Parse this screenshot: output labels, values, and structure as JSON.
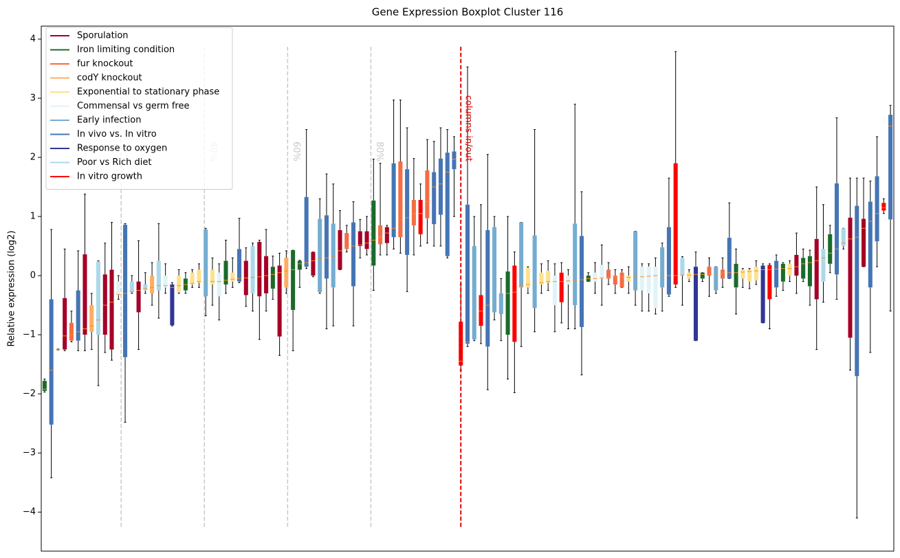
{
  "chart_data": {
    "type": "boxplot",
    "title": "Gene Expression Boxplot Cluster 116",
    "y_label": "Relative expression (log2)",
    "ylim": [
      -4.66,
      4.22
    ],
    "yticks": [
      {
        "value": -4,
        "label": "−4"
      },
      {
        "value": -3,
        "label": "−3"
      },
      {
        "value": -2,
        "label": "−2"
      },
      {
        "value": -1,
        "label": "−1"
      },
      0,
      1,
      2,
      3,
      4
    ],
    "xlim": [
      -0.5,
      126.5
    ],
    "legend": "upper left",
    "series": [
      {
        "name": "Sporulation",
        "color": "#a50026"
      },
      {
        "name": "Iron limiting condition",
        "color": "#1a6b2a"
      },
      {
        "name": "fur knockout",
        "color": "#f46d43"
      },
      {
        "name": "codY knockout",
        "color": "#fdae61"
      },
      {
        "name": "Exponential to stationary phase",
        "color": "#fee090"
      },
      {
        "name": "Commensal vs germ free",
        "color": "#e0f3f8"
      },
      {
        "name": "Early infection",
        "color": "#74add1"
      },
      {
        "name": "In vivo vs. In vitro",
        "color": "#4575b4"
      },
      {
        "name": "Response to oxygen",
        "color": "#313695"
      },
      {
        "name": "Poor vs Rich diet",
        "color": "#abd9e9"
      },
      {
        "name": "In vitro growth",
        "color": "#ff0000"
      }
    ],
    "boxes": [
      [
        1,
        -1.97,
        -1.95,
        -1.92,
        -1.78,
        -1.75
      ],
      [
        7,
        -3.42,
        -2.52,
        -1.6,
        -0.4,
        0.78
      ],
      [
        3,
        -1.26,
        -1.26,
        -1.25,
        -1.24,
        -1.24
      ],
      [
        0,
        -1.27,
        -1.25,
        -1.02,
        -0.38,
        0.45
      ],
      [
        2,
        -1.12,
        -1.1,
        -1.0,
        -0.8,
        -0.6
      ],
      [
        7,
        -1.27,
        -1.1,
        -0.95,
        -0.25,
        0.42
      ],
      [
        0,
        -1.27,
        -1.0,
        -0.9,
        0.36,
        1.38
      ],
      [
        3,
        -1.25,
        -0.95,
        -0.85,
        -0.5,
        -0.3
      ],
      [
        9,
        -1.86,
        -1.0,
        -0.75,
        0.24,
        0.25
      ],
      [
        0,
        -1.3,
        -1.0,
        -0.5,
        0.02,
        0.55
      ],
      [
        0,
        -1.43,
        -1.25,
        -0.45,
        0.1,
        0.9
      ],
      [
        5,
        -0.4,
        -0.33,
        -0.32,
        -0.1,
        0.0
      ],
      [
        7,
        -2.48,
        -1.38,
        -0.3,
        0.86,
        0.88
      ],
      [
        9,
        -0.3,
        -0.28,
        -0.27,
        -0.1,
        0.0
      ],
      [
        0,
        -1.25,
        -0.62,
        -0.25,
        -0.1,
        0.59
      ],
      [
        9,
        -0.3,
        -0.25,
        -0.22,
        -0.15,
        0.05
      ],
      [
        3,
        -0.5,
        -0.3,
        -0.2,
        0.0,
        0.22
      ],
      [
        9,
        -0.72,
        -0.25,
        -0.17,
        0.25,
        0.88
      ],
      [
        5,
        -0.3,
        -0.2,
        -0.17,
        0.0,
        0.2
      ],
      [
        8,
        -0.85,
        -0.84,
        -0.2,
        -0.15,
        -0.12
      ],
      [
        4,
        -0.3,
        -0.28,
        -0.17,
        0.0,
        0.1
      ],
      [
        1,
        -0.3,
        -0.25,
        -0.15,
        -0.05,
        0.05
      ],
      [
        4,
        -0.2,
        -0.15,
        -0.13,
        0.05,
        0.1
      ],
      [
        4,
        -0.2,
        -0.12,
        -0.1,
        0.1,
        0.2
      ],
      [
        6,
        -0.68,
        -0.35,
        -0.1,
        0.78,
        0.8
      ],
      [
        4,
        -0.5,
        -0.15,
        -0.1,
        0.1,
        0.3
      ],
      [
        5,
        -0.75,
        -0.35,
        -0.1,
        0.05,
        0.2
      ],
      [
        1,
        -0.3,
        -0.15,
        -0.08,
        0.25,
        0.6
      ],
      [
        4,
        -0.2,
        -0.1,
        -0.06,
        0.05,
        0.3
      ],
      [
        7,
        -0.12,
        -0.1,
        -0.05,
        0.45,
        0.97
      ],
      [
        0,
        -0.52,
        -0.33,
        -0.04,
        0.25,
        0.47
      ],
      [
        9,
        -0.6,
        -0.3,
        -0.03,
        0.5,
        0.55
      ],
      [
        0,
        -1.08,
        -0.35,
        -0.02,
        0.57,
        0.6
      ],
      [
        0,
        -0.6,
        -0.3,
        0.0,
        0.33,
        0.78
      ],
      [
        1,
        -0.4,
        -0.22,
        0.02,
        0.15,
        0.33
      ],
      [
        0,
        -1.35,
        -1.03,
        0.05,
        0.17,
        0.38
      ],
      [
        3,
        -0.3,
        -0.2,
        0.08,
        0.3,
        0.42
      ],
      [
        1,
        -1.27,
        -0.58,
        0.1,
        0.43,
        0.43
      ],
      [
        1,
        -0.2,
        0.1,
        0.2,
        0.25,
        0.26
      ],
      [
        7,
        0.12,
        0.15,
        0.22,
        1.33,
        2.47
      ],
      [
        0,
        -0.02,
        0.0,
        0.25,
        0.4,
        0.4
      ],
      [
        6,
        -0.3,
        -0.28,
        0.28,
        0.96,
        1.3
      ],
      [
        7,
        -0.9,
        -0.05,
        0.3,
        1.02,
        1.72
      ],
      [
        6,
        -0.85,
        -0.2,
        0.33,
        0.88,
        1.55
      ],
      [
        0,
        0.1,
        0.1,
        0.42,
        0.77,
        1.1
      ],
      [
        2,
        0.4,
        0.45,
        0.48,
        0.72,
        0.85
      ],
      [
        7,
        -0.85,
        -0.18,
        0.5,
        0.9,
        1.25
      ],
      [
        0,
        0.3,
        0.5,
        0.52,
        0.75,
        0.95
      ],
      [
        0,
        0.35,
        0.45,
        0.55,
        0.75,
        1.0
      ],
      [
        1,
        -0.25,
        0.17,
        0.6,
        1.27,
        1.97
      ],
      [
        2,
        0.35,
        0.53,
        0.65,
        0.85,
        1.9
      ],
      [
        0,
        0.35,
        0.55,
        0.72,
        0.82,
        0.85
      ],
      [
        7,
        0.45,
        0.65,
        0.8,
        1.9,
        2.97
      ],
      [
        2,
        0.38,
        0.65,
        0.95,
        1.93,
        2.97
      ],
      [
        7,
        -0.27,
        0.35,
        0.98,
        1.8,
        2.5
      ],
      [
        2,
        0.35,
        0.85,
        1.05,
        1.28,
        1.98
      ],
      [
        10,
        0.5,
        0.7,
        1.05,
        1.28,
        1.55
      ],
      [
        2,
        0.55,
        0.97,
        1.25,
        1.78,
        2.3
      ],
      [
        7,
        0.5,
        0.87,
        1.5,
        1.75,
        2.27
      ],
      [
        7,
        0.5,
        1.03,
        1.55,
        1.98,
        2.5
      ],
      [
        7,
        0.3,
        0.33,
        1.75,
        2.08,
        2.47
      ],
      [
        7,
        1.0,
        1.8,
        1.97,
        2.1,
        2.35
      ],
      [
        10,
        -1.6,
        -1.52,
        -1.45,
        -0.78,
        -0.15
      ],
      [
        7,
        -1.2,
        -1.15,
        -1.12,
        1.2,
        3.53
      ],
      [
        6,
        -1.1,
        -1.08,
        -0.7,
        0.5,
        1.0
      ],
      [
        10,
        -1.15,
        -0.85,
        -0.6,
        -0.33,
        1.2
      ],
      [
        7,
        -1.93,
        -1.2,
        -0.5,
        0.77,
        2.05
      ],
      [
        6,
        -0.75,
        -0.62,
        -0.47,
        0.82,
        1.0
      ],
      [
        6,
        -1.1,
        -0.65,
        -0.4,
        -0.3,
        -0.05
      ],
      [
        1,
        -1.75,
        -1.0,
        -0.3,
        0.07,
        1.0
      ],
      [
        10,
        -1.98,
        -1.12,
        -0.28,
        0.17,
        0.4
      ],
      [
        6,
        -1.2,
        -0.2,
        -0.18,
        0.9,
        0.9
      ],
      [
        4,
        -0.3,
        -0.2,
        -0.15,
        0.13,
        0.15
      ],
      [
        6,
        -0.95,
        -0.55,
        -0.13,
        0.68,
        2.47
      ],
      [
        4,
        -0.3,
        -0.15,
        -0.12,
        0.05,
        0.2
      ],
      [
        4,
        -0.25,
        -0.12,
        -0.1,
        0.08,
        0.25
      ],
      [
        5,
        -0.95,
        -0.5,
        -0.1,
        0.0,
        0.2
      ],
      [
        10,
        -0.8,
        -0.45,
        -0.1,
        0.05,
        0.22
      ],
      [
        5,
        -0.9,
        -0.15,
        -0.09,
        0.0,
        0.1
      ],
      [
        6,
        -0.9,
        -0.5,
        -0.08,
        0.88,
        2.9
      ],
      [
        7,
        -1.68,
        -0.87,
        -0.07,
        0.67,
        1.42
      ],
      [
        1,
        -0.1,
        -0.1,
        -0.05,
        0.0,
        0.05
      ],
      [
        5,
        -0.3,
        -0.1,
        -0.05,
        0.05,
        0.22
      ],
      [
        5,
        -0.5,
        -0.05,
        -0.04,
        0.18,
        0.52
      ],
      [
        2,
        -0.15,
        -0.05,
        -0.03,
        0.1,
        0.22
      ],
      [
        2,
        -0.3,
        -0.15,
        -0.03,
        0.0,
        0.1
      ],
      [
        2,
        -0.2,
        -0.2,
        -0.03,
        0.05,
        0.1
      ],
      [
        4,
        -0.3,
        -0.1,
        -0.03,
        0.0,
        0.15
      ],
      [
        6,
        -0.5,
        -0.25,
        -0.02,
        0.75,
        0.75
      ],
      [
        5,
        -0.6,
        -0.25,
        -0.02,
        0.15,
        0.2
      ],
      [
        5,
        -0.6,
        -0.3,
        -0.01,
        0.15,
        0.2
      ],
      [
        5,
        -0.65,
        -0.55,
        0.0,
        0.15,
        0.3
      ],
      [
        6,
        -0.6,
        -0.2,
        0.0,
        0.48,
        0.55
      ],
      [
        7,
        -0.35,
        -0.32,
        0.0,
        0.82,
        1.65
      ],
      [
        10,
        -0.2,
        -0.15,
        0.0,
        1.9,
        3.79
      ],
      [
        9,
        -0.5,
        0.0,
        0.01,
        0.3,
        0.32
      ],
      [
        4,
        -0.1,
        -0.05,
        0.01,
        0.05,
        0.1
      ],
      [
        8,
        -1.1,
        -1.1,
        0.02,
        0.15,
        0.4
      ],
      [
        1,
        -0.1,
        -0.05,
        0.02,
        0.05,
        0.05
      ],
      [
        2,
        -0.35,
        0.0,
        0.03,
        0.15,
        0.3
      ],
      [
        6,
        -0.3,
        -0.25,
        0.03,
        0.15,
        0.15
      ],
      [
        2,
        -0.2,
        -0.05,
        0.04,
        0.1,
        0.3
      ],
      [
        7,
        -0.05,
        -0.05,
        0.05,
        0.64,
        1.23
      ],
      [
        1,
        -0.65,
        -0.2,
        0.05,
        0.2,
        0.45
      ],
      [
        4,
        -0.2,
        -0.05,
        0.06,
        0.1,
        0.12
      ],
      [
        4,
        -0.22,
        -0.1,
        0.07,
        0.1,
        0.12
      ],
      [
        4,
        -0.15,
        -0.08,
        0.08,
        0.15,
        0.25
      ],
      [
        8,
        -0.8,
        -0.8,
        0.1,
        0.17,
        0.2
      ],
      [
        10,
        -0.9,
        -0.4,
        0.1,
        0.18,
        0.2
      ],
      [
        7,
        -0.35,
        -0.2,
        0.11,
        0.25,
        0.35
      ],
      [
        1,
        -0.25,
        -0.1,
        0.12,
        0.2,
        0.22
      ],
      [
        4,
        -0.1,
        0.0,
        0.12,
        0.2,
        0.25
      ],
      [
        0,
        -0.3,
        0.0,
        0.15,
        0.35,
        0.72
      ],
      [
        1,
        -0.1,
        -0.05,
        0.2,
        0.3,
        0.45
      ],
      [
        1,
        -0.5,
        -0.18,
        0.22,
        0.33,
        0.43
      ],
      [
        0,
        -1.25,
        -0.4,
        0.25,
        0.62,
        1.5
      ],
      [
        9,
        -0.45,
        -0.1,
        0.3,
        0.45,
        1.2
      ],
      [
        1,
        0.05,
        0.2,
        0.38,
        0.7,
        0.85
      ],
      [
        7,
        -0.4,
        0.02,
        0.45,
        1.56,
        2.67
      ],
      [
        9,
        0.45,
        0.5,
        0.55,
        0.8,
        0.8
      ],
      [
        0,
        -1.6,
        -1.05,
        0.62,
        0.98,
        1.65
      ],
      [
        7,
        -4.1,
        -1.7,
        0.65,
        1.18,
        1.65
      ],
      [
        0,
        0.15,
        0.15,
        0.8,
        0.96,
        1.65
      ],
      [
        7,
        -1.3,
        -0.2,
        0.92,
        1.25,
        1.6
      ],
      [
        7,
        0.15,
        0.58,
        1.05,
        1.68,
        2.35
      ],
      [
        10,
        1.05,
        1.1,
        1.15,
        1.23,
        1.3
      ],
      [
        7,
        -0.6,
        0.95,
        2.53,
        2.72,
        2.88
      ]
    ],
    "percent_lines": {
      "color": "#c8c8c8",
      "y_range": [
        -4.25,
        3.87
      ],
      "lines": [
        {
          "x": 11.4
        },
        {
          "x": 23.8,
          "label": "40%"
        },
        {
          "x": 36.2,
          "label": "60%"
        },
        {
          "x": 48.6,
          "label": "80%"
        }
      ]
    },
    "split_line": {
      "color": "#e00000",
      "y_range": [
        -4.25,
        3.87
      ],
      "x": 62,
      "label": "columns in/out"
    },
    "median_color": "#ff8c1a"
  }
}
